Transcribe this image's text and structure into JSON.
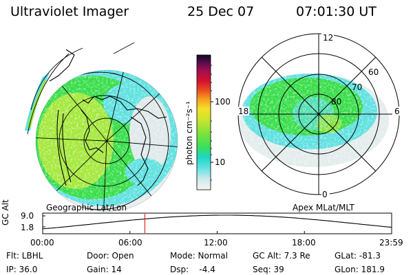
{
  "header": {
    "instrument": "Ultraviolet Imager",
    "date": "25 Dec 07",
    "time": "07:01:30 UT"
  },
  "left_panel": {
    "label": "Geographic Lat/Lon"
  },
  "right_panel": {
    "label": "Apex MLat/MLT",
    "mlt_labels": {
      "top": "12",
      "right": "6",
      "bottom": "0",
      "left": "18"
    },
    "lat_labels": [
      "60",
      "70",
      "80"
    ]
  },
  "colorbar": {
    "unit_label": "photon cm⁻²s⁻¹",
    "ticks": [
      "100",
      "10"
    ]
  },
  "altitude_plot": {
    "axis_label": "GC Alt",
    "y_ticks": [
      "9.0",
      "1.8"
    ],
    "x_ticks": [
      "00:00",
      "06:00",
      "12:00",
      "18:00",
      "23:59"
    ],
    "current_time_hours": 7.025
  },
  "status": {
    "flt": "Flt: LBHL",
    "ip": "IP: 36.0",
    "door": "Door: Open",
    "gain": "Gain: 14",
    "mode": "Mode: Normal",
    "dsp": "Dsp:    -4.4",
    "gc_alt": "GC Alt: 7.3 Re",
    "seq": "Seq: 39",
    "glat": "GLat: -81.3",
    "glon": "GLon: 181.9"
  },
  "colors": {
    "bg": "#ffffff",
    "ink": "#000000",
    "time_marker": "#e00000",
    "emission_high": "#33dd33",
    "emission_mid": "#a4e83a",
    "emission_low": "#5ee0e0",
    "emission_faint": "#dfe9e9"
  }
}
